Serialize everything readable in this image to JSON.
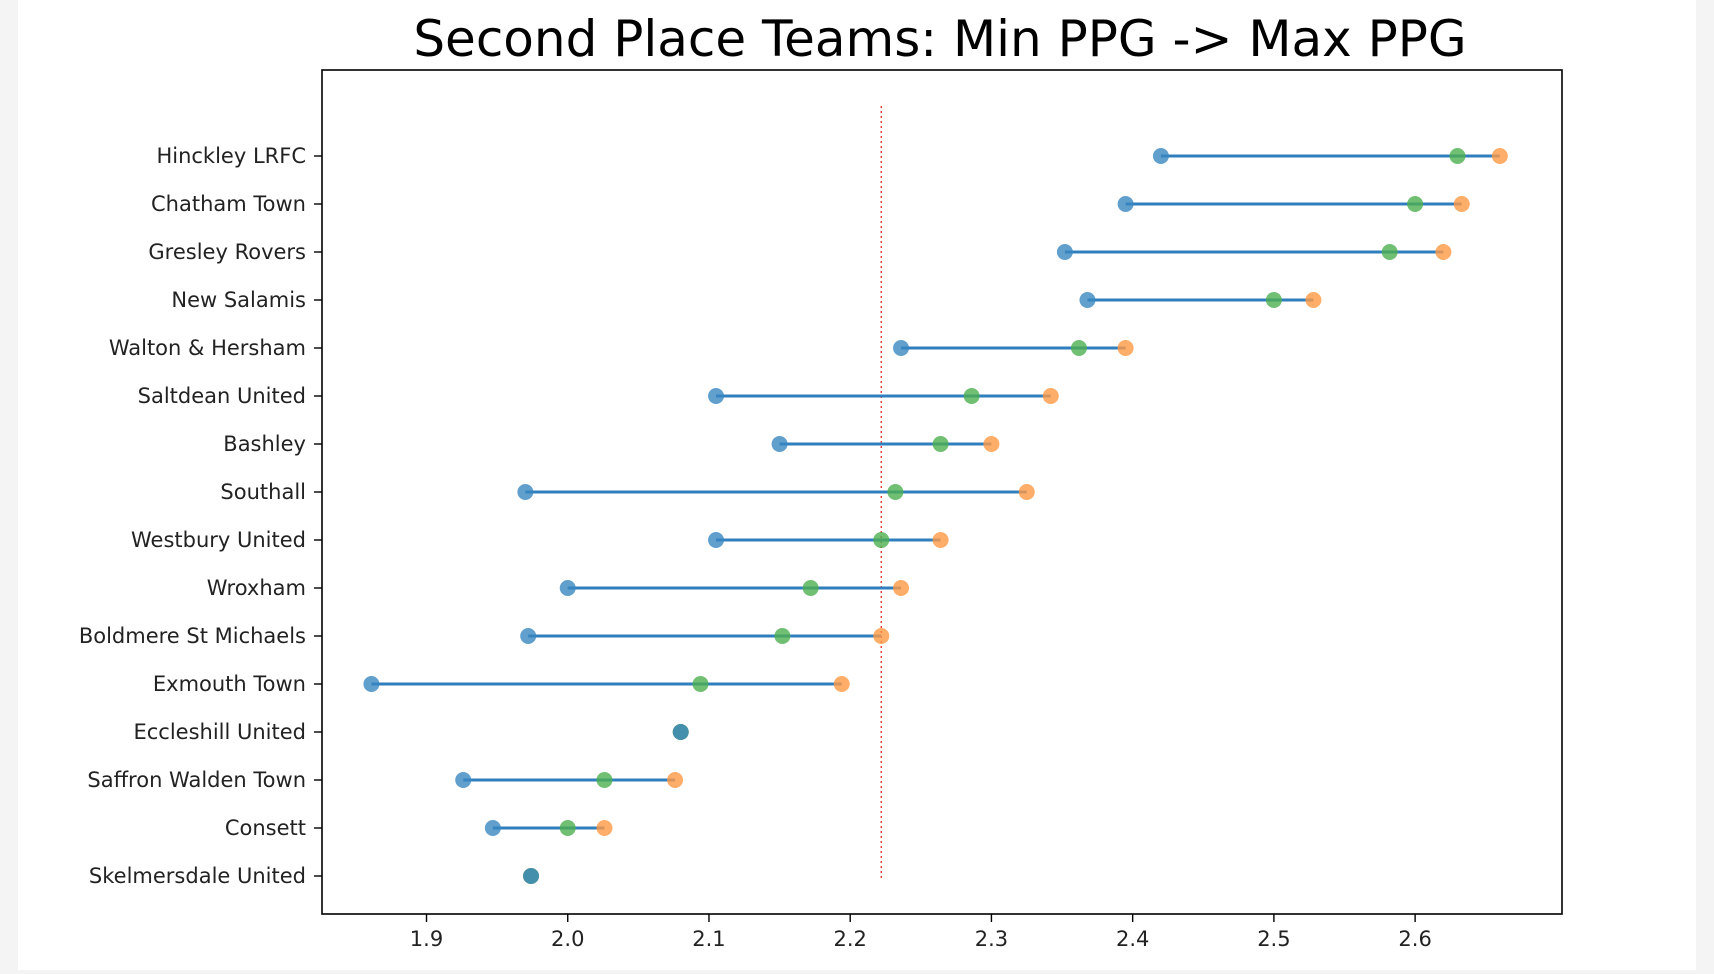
{
  "chart_data": {
    "type": "dumbbell",
    "title": "Second Place Teams: Min PPG -> Max PPG",
    "xlabel": "",
    "ylabel": "",
    "xlim": [
      1.826,
      2.704
    ],
    "x_ticks": [
      "1.9",
      "2.0",
      "2.1",
      "2.2",
      "2.3",
      "2.4",
      "2.5",
      "2.6"
    ],
    "x_tick_values": [
      1.9,
      2.0,
      2.1,
      2.2,
      2.3,
      2.4,
      2.5,
      2.6
    ],
    "grid": false,
    "reference_line": {
      "x": 2.222,
      "color": "#e8382e",
      "style": "dotted"
    },
    "colors": {
      "min": "#3a87c0",
      "max": "#ff9a45",
      "mid": "#4caf50",
      "line": "#2f7fbf"
    },
    "teams": [
      {
        "name": "Hinckley LRFC",
        "min": 2.42,
        "mid": 2.63,
        "max": 2.66
      },
      {
        "name": "Chatham Town",
        "min": 2.395,
        "mid": 2.6,
        "max": 2.633
      },
      {
        "name": "Gresley Rovers",
        "min": 2.352,
        "mid": 2.582,
        "max": 2.62
      },
      {
        "name": "New Salamis",
        "min": 2.368,
        "mid": 2.5,
        "max": 2.528
      },
      {
        "name": "Walton & Hersham",
        "min": 2.236,
        "mid": 2.362,
        "max": 2.395
      },
      {
        "name": "Saltdean United",
        "min": 2.105,
        "mid": 2.286,
        "max": 2.342
      },
      {
        "name": "Bashley",
        "min": 2.15,
        "mid": 2.264,
        "max": 2.3
      },
      {
        "name": "Southall",
        "min": 1.97,
        "mid": 2.232,
        "max": 2.325
      },
      {
        "name": "Westbury United",
        "min": 2.105,
        "mid": 2.222,
        "max": 2.264
      },
      {
        "name": "Wroxham",
        "min": 2.0,
        "mid": 2.172,
        "max": 2.236
      },
      {
        "name": "Boldmere St Michaels",
        "min": 1.972,
        "mid": 2.152,
        "max": 2.222
      },
      {
        "name": "Exmouth Town",
        "min": 1.861,
        "mid": 2.094,
        "max": 2.194
      },
      {
        "name": "Eccleshill United",
        "min": 2.08,
        "mid": 2.08,
        "max": 2.08
      },
      {
        "name": "Saffron Walden Town",
        "min": 1.926,
        "mid": 2.026,
        "max": 2.076
      },
      {
        "name": "Consett",
        "min": 1.947,
        "mid": 2.0,
        "max": 2.026
      },
      {
        "name": "Skelmersdale United",
        "min": 1.974,
        "mid": 1.974,
        "max": 1.974
      }
    ]
  }
}
